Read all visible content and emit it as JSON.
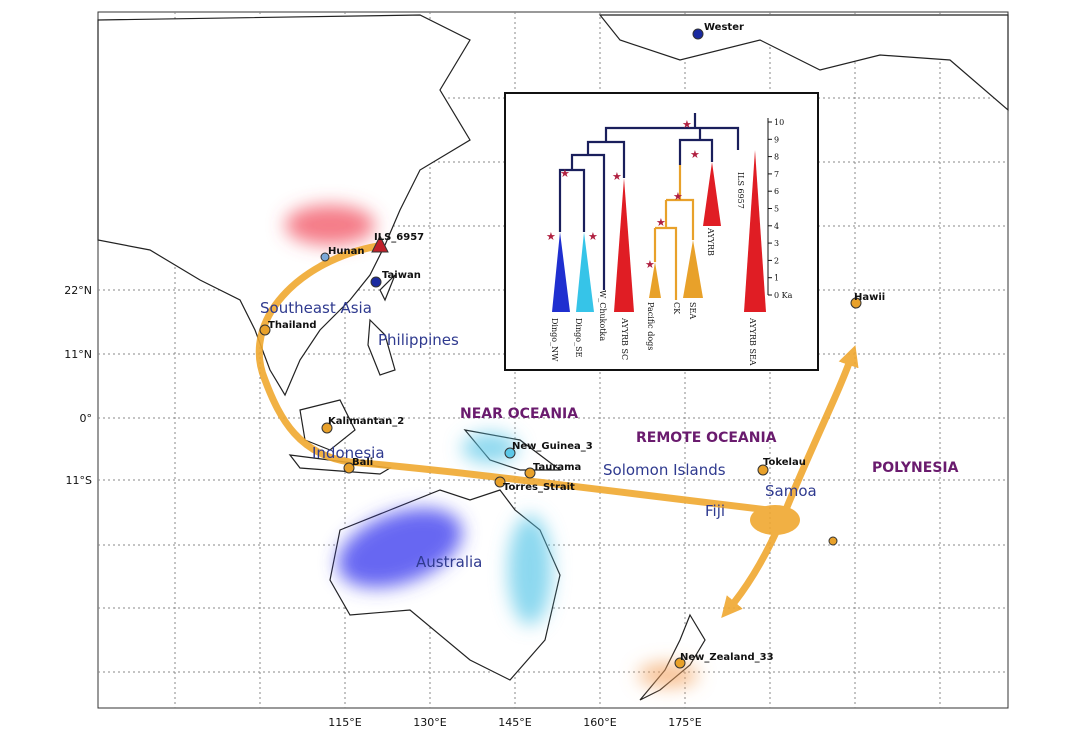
{
  "map": {
    "places": [
      "Wester",
      "ILS_6957",
      "Hunan",
      "Taiwan",
      "Thailand",
      "Kalimantan_2",
      "Bali",
      "New_Guinea_3",
      "Taurama",
      "Torres_Strait",
      "Tokelau",
      "Hawii",
      "New_Zealand_33"
    ],
    "regions": [
      "Southeast Asia",
      "Philippines",
      "Indonesia",
      "Solomon Islands",
      "Samoa",
      "Fiji",
      "Australia"
    ],
    "zones": [
      "NEAR OCEANIA",
      "REMOTE OCEANIA",
      "POLYNESIA"
    ],
    "latitude_labels": [
      "22°N",
      "11°N",
      "0°",
      "11°S"
    ],
    "longitude_labels": [
      "115°E",
      "130°E",
      "145°E",
      "160°E",
      "175°E"
    ]
  },
  "inset": {
    "tips": [
      "Dingo_NW",
      "Dingo_SE",
      "W_Chukotka",
      "AYYRB SC",
      "Pacific dogs",
      "CK",
      "SEA",
      "AYYRB",
      "ILS 6957",
      "AYYRB SEA"
    ],
    "axis_ticks": [
      "10",
      "9",
      "8",
      "7",
      "6",
      "5",
      "4",
      "3",
      "2",
      "1",
      "0 Ka"
    ]
  }
}
